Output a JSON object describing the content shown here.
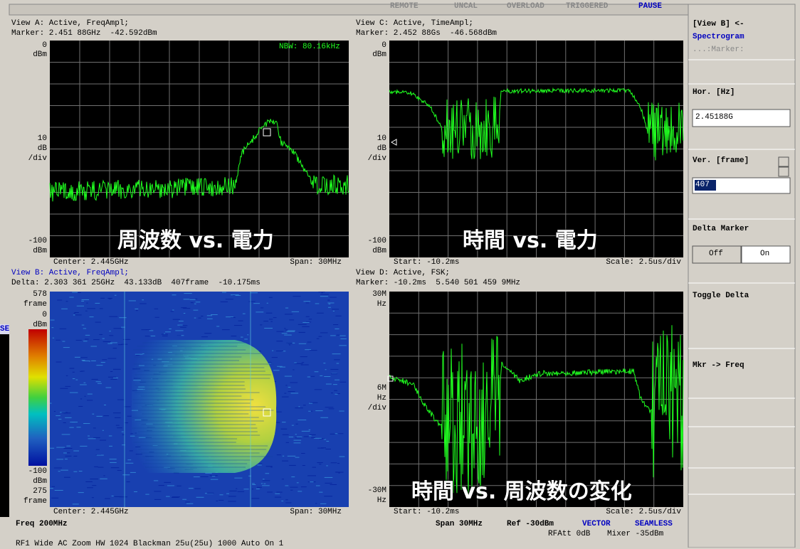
{
  "status_bar": {
    "remote": "REMOTE",
    "uncal": "UNCAL",
    "overload": "OVERLOAD",
    "triggered": "TRIGGERED",
    "pause": "PAUSE"
  },
  "view_a": {
    "title": "View A: Active, FreqAmpl;",
    "marker": "Marker: 2.451 88GHz  -42.592dBm",
    "nbw": "NBW: 80.16kHz",
    "axis": [
      "0",
      "dBm",
      "10",
      "dB",
      "/div",
      "-100",
      "dBm"
    ],
    "footer_left": "Center: 2.445GHz",
    "footer_right": "Span: 30MHz",
    "caption": "周波数 vs. 電力"
  },
  "view_c": {
    "title": "View C: Active, TimeAmpl;",
    "marker": "Marker: 2.452 88Gs  -46.568dBm",
    "axis": [
      "0",
      "dBm",
      "10",
      "dB",
      "/div",
      "-100",
      "dBm"
    ],
    "footer_left": "Start: -10.2ms",
    "footer_right": "Scale: 2.5us/div",
    "caption": "時間 vs. 電力"
  },
  "view_b": {
    "title": "View B: Active, FreqAmpl;",
    "delta": "Delta: 2.303 361 25GHz  43.133dB  407frame  -10.175ms",
    "axis": [
      "578",
      "frame",
      "0",
      "dBm",
      "-100",
      "dBm",
      "275",
      "frame"
    ],
    "footer_left": "Center: 2.445GHz",
    "footer_right": "Span: 30MHz"
  },
  "view_d": {
    "title": "View D: Active, FSK;",
    "marker": "Marker: -10.2ms  5.540 501 459 9MHz",
    "axis": [
      "30M",
      "Hz",
      "6M",
      "Hz",
      "/div",
      "-30M",
      "Hz"
    ],
    "footer_left": "Start: -10.2ms",
    "footer_right": "Scale: 2.5us/div",
    "caption": "時間 vs. 周波数の変化"
  },
  "bottom_bar": {
    "freq": "Freq 200MHz",
    "span": "Span 30MHz",
    "ref": "Ref -30dBm",
    "vector": "VECTOR",
    "seamless": "SEAMLESS",
    "rfatt": "RFAtt 0dB",
    "mixer": "Mixer -35dBm",
    "settings": "RF1 Wide AC Zoom HW 1024 Blackman 25u(25u) 1000 Auto On 1"
  },
  "side_panel": {
    "view_select": "[View B] <-",
    "mode": "Spectrogram",
    "marker_sub": "...:Marker:",
    "hor_label": "Hor. [Hz]",
    "hor_value": "2.45188G",
    "ver_label": "Ver. [frame]",
    "ver_value": "407",
    "delta_label": "Delta Marker",
    "off": "Off",
    "on": "On",
    "toggle_delta": "Toggle Delta",
    "mkr_freq": "Mkr -> Freq"
  },
  "edge_fragment": "SE"
}
